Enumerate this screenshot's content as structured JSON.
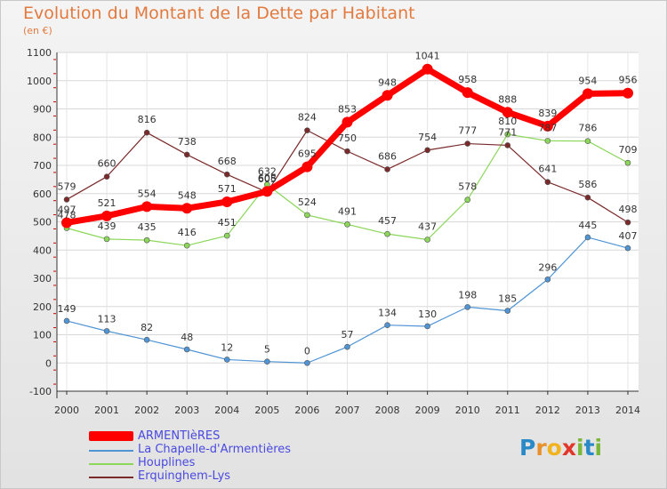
{
  "title": "Evolution du Montant de la Dette par Habitant",
  "subtitle": "(en €)",
  "logo": {
    "text": "Proxiti",
    "letters": [
      {
        "ch": "P",
        "color": "#2a8ac8"
      },
      {
        "ch": "r",
        "color": "#e8912c"
      },
      {
        "ch": "o",
        "color": "#f2b31f"
      },
      {
        "ch": "x",
        "color": "#e2362a"
      },
      {
        "ch": "i",
        "color": "#7ab83a"
      },
      {
        "ch": "t",
        "color": "#2a8ac8"
      },
      {
        "ch": "i",
        "color": "#7ab83a"
      }
    ]
  },
  "chart_data": {
    "type": "line",
    "x": [
      "2000",
      "2001",
      "2002",
      "2003",
      "2004",
      "2005",
      "2006",
      "2007",
      "2008",
      "2009",
      "2010",
      "2011",
      "2012",
      "2013",
      "2014"
    ],
    "ylim": [
      -100,
      1100
    ],
    "yticks": [
      "-100",
      "0",
      "100",
      "200",
      "300",
      "400",
      "500",
      "600",
      "700",
      "800",
      "900",
      "1000",
      "1100"
    ],
    "grid": true,
    "legend_position": "bottom-left",
    "series": [
      {
        "name": "ARMENTIèRES",
        "color": "#ff0000",
        "values": [
          497,
          521,
          554,
          548,
          571,
          608,
          695,
          853,
          948,
          1041,
          958,
          888,
          839,
          954,
          956
        ],
        "labels": [
          "497",
          "521",
          "554",
          "548",
          "571",
          "608",
          "695",
          "853",
          "948",
          "1041",
          "958",
          "888",
          "839",
          "954",
          "956"
        ]
      },
      {
        "name": "La Chapelle-d'Armentières",
        "color": "#4f94d4",
        "values": [
          149,
          113,
          82,
          48,
          12,
          5,
          0,
          57,
          134,
          130,
          198,
          185,
          296,
          445,
          407
        ],
        "labels": [
          "149",
          "113",
          "82",
          "48",
          "12",
          "5",
          "0",
          "57",
          "134",
          "130",
          "198",
          "185",
          "296",
          "445",
          "407"
        ]
      },
      {
        "name": "Houplines",
        "color": "#8cd65a",
        "values": [
          478,
          439,
          435,
          416,
          451,
          632,
          524,
          491,
          457,
          437,
          578,
          810,
          787,
          786,
          709
        ],
        "labels": [
          "478",
          "439",
          "435",
          "416",
          "451",
          "632",
          "524",
          "491",
          "457",
          "437",
          "578",
          "810",
          "787",
          "786",
          "709"
        ]
      },
      {
        "name": "Erquinghem-Lys",
        "color": "#7a2a2a",
        "values": [
          579,
          660,
          816,
          738,
          668,
          605,
          824,
          750,
          686,
          754,
          777,
          771,
          641,
          586,
          498
        ],
        "labels": [
          "579",
          "660",
          "816",
          "738",
          "668",
          "605",
          "824",
          "750",
          "686",
          "754",
          "777",
          "771",
          "641",
          "586",
          "498"
        ]
      }
    ]
  }
}
